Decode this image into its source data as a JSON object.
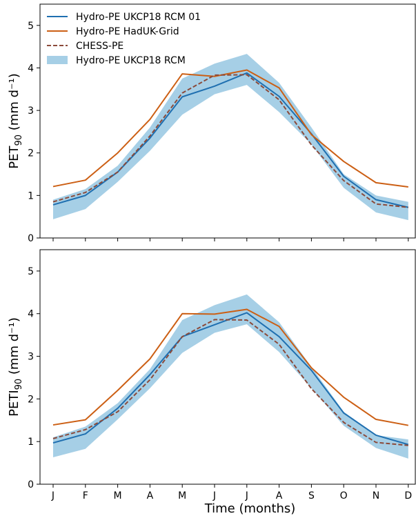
{
  "chart_data": [
    {
      "type": "line",
      "title": "",
      "ylabel_main": "PET",
      "ylabel_sub": "90",
      "ylabel_unit": " (mm d⁻¹)",
      "xlabel": "",
      "categories": [
        "J",
        "F",
        "M",
        "A",
        "M",
        "J",
        "J",
        "A",
        "S",
        "O",
        "N",
        "D"
      ],
      "ylim": [
        0,
        5.5
      ],
      "yticks": [
        0,
        1,
        2,
        3,
        4,
        5
      ],
      "series": [
        {
          "name": "Hydro-PE UKCP18 RCM 01",
          "color": "#1f6fb0",
          "style": "solid",
          "values": [
            0.78,
            1.0,
            1.55,
            2.35,
            3.32,
            3.57,
            3.88,
            3.33,
            2.45,
            1.45,
            0.9,
            0.72
          ]
        },
        {
          "name": "Hydro-PE HadUK-Grid",
          "color": "#cc5f14",
          "style": "solid",
          "values": [
            1.21,
            1.36,
            2.0,
            2.79,
            3.86,
            3.8,
            3.95,
            3.53,
            2.43,
            1.8,
            1.3,
            1.2
          ]
        },
        {
          "name": "CHESS-PE",
          "color": "#8b4a3a",
          "style": "dashed",
          "values": [
            0.85,
            1.07,
            1.55,
            2.4,
            3.41,
            3.83,
            3.84,
            3.25,
            2.19,
            1.35,
            0.8,
            0.72
          ]
        }
      ],
      "band": {
        "name": "Hydro-PE UKCP18 RCM",
        "color": "#a6cfe6",
        "upper": [
          0.9,
          1.15,
          1.7,
          2.6,
          3.75,
          4.1,
          4.33,
          3.65,
          2.6,
          1.5,
          1.0,
          0.85
        ],
        "lower": [
          0.44,
          0.68,
          1.32,
          2.05,
          2.9,
          3.38,
          3.6,
          2.96,
          2.2,
          1.18,
          0.6,
          0.42
        ]
      }
    },
    {
      "type": "line",
      "title": "",
      "ylabel_main": "PETI",
      "ylabel_sub": "90",
      "ylabel_unit": " (mm d⁻¹)",
      "xlabel": "Time (months)",
      "categories": [
        "J",
        "F",
        "M",
        "A",
        "M",
        "J",
        "J",
        "A",
        "S",
        "O",
        "N",
        "D"
      ],
      "ylim": [
        0,
        5.5
      ],
      "yticks": [
        0,
        1,
        2,
        3,
        4,
        5
      ],
      "series": [
        {
          "name": "Hydro-PE UKCP18 RCM 01",
          "color": "#1f6fb0",
          "style": "solid",
          "values": [
            0.97,
            1.18,
            1.78,
            2.57,
            3.46,
            3.74,
            4.02,
            3.46,
            2.67,
            1.67,
            1.15,
            0.93
          ]
        },
        {
          "name": "Hydro-PE HadUK-Grid",
          "color": "#cc5f14",
          "style": "solid",
          "values": [
            1.39,
            1.51,
            2.2,
            2.94,
            4.0,
            3.99,
            4.1,
            3.7,
            2.73,
            2.04,
            1.52,
            1.38
          ]
        },
        {
          "name": "CHESS-PE",
          "color": "#8b4a3a",
          "style": "dashed",
          "values": [
            1.07,
            1.28,
            1.7,
            2.45,
            3.46,
            3.86,
            3.85,
            3.28,
            2.24,
            1.45,
            0.98,
            0.91
          ]
        }
      ],
      "band": {
        "name": "Hydro-PE UKCP18 RCM",
        "color": "#a6cfe6",
        "upper": [
          1.1,
          1.35,
          1.9,
          2.7,
          3.85,
          4.2,
          4.45,
          3.8,
          2.75,
          1.7,
          1.15,
          1.05
        ],
        "lower": [
          0.63,
          0.83,
          1.52,
          2.25,
          3.08,
          3.55,
          3.75,
          3.1,
          2.25,
          1.37,
          0.85,
          0.6
        ]
      }
    }
  ],
  "legend": {
    "placement": "top-left",
    "entries": [
      {
        "label": "Hydro-PE UKCP18 RCM 01",
        "kind": "line",
        "color": "#1f6fb0",
        "style": "solid"
      },
      {
        "label": "Hydro-PE HadUK-Grid",
        "kind": "line",
        "color": "#cc5f14",
        "style": "solid"
      },
      {
        "label": "CHESS-PE",
        "kind": "line",
        "color": "#8b4a3a",
        "style": "dashed"
      },
      {
        "label": "Hydro-PE UKCP18 RCM",
        "kind": "patch",
        "color": "#a6cfe6",
        "style": "fill"
      }
    ]
  }
}
